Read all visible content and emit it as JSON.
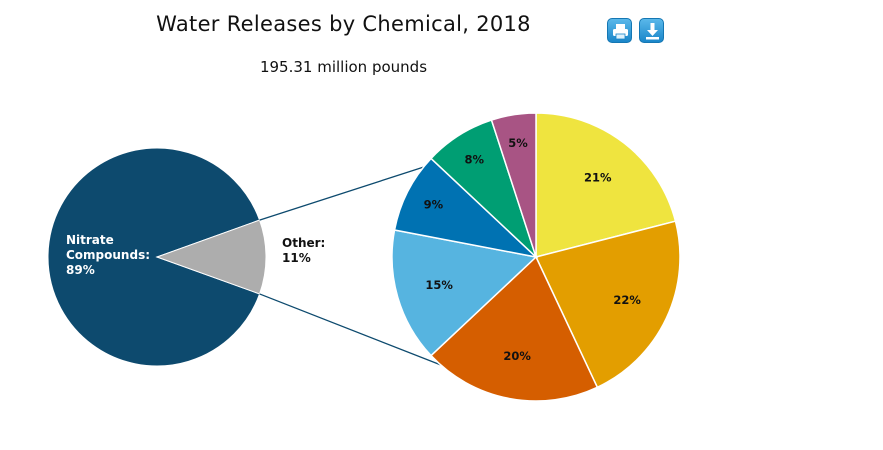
{
  "title": "Water Releases by Chemical, 2018",
  "subtitle": "195.31 million pounds",
  "toolbar": {
    "print_icon": "print-icon",
    "download_icon": "download-icon"
  },
  "chart_data": [
    {
      "type": "pie",
      "slices": [
        {
          "label_lines": [
            "Nitrate",
            "Compounds:",
            "89%"
          ],
          "value": 89,
          "color": "#0d4a6e",
          "label_color": "#ffffff"
        },
        {
          "label_lines": [
            "Other:",
            "11%"
          ],
          "value": 11,
          "color": "#adadad",
          "label_color": "#111111"
        }
      ]
    },
    {
      "type": "pie",
      "slices": [
        {
          "label": "21%",
          "value": 21,
          "color": "#efe43f"
        },
        {
          "label": "22%",
          "value": 22,
          "color": "#e39e00"
        },
        {
          "label": "20%",
          "value": 20,
          "color": "#d55e00"
        },
        {
          "label": "15%",
          "value": 15,
          "color": "#56b4e0"
        },
        {
          "label": "9%",
          "value": 9,
          "color": "#0072b2"
        },
        {
          "label": "8%",
          "value": 8,
          "color": "#009e73"
        },
        {
          "label": "5%",
          "value": 5,
          "color": "#a85484"
        }
      ]
    }
  ]
}
